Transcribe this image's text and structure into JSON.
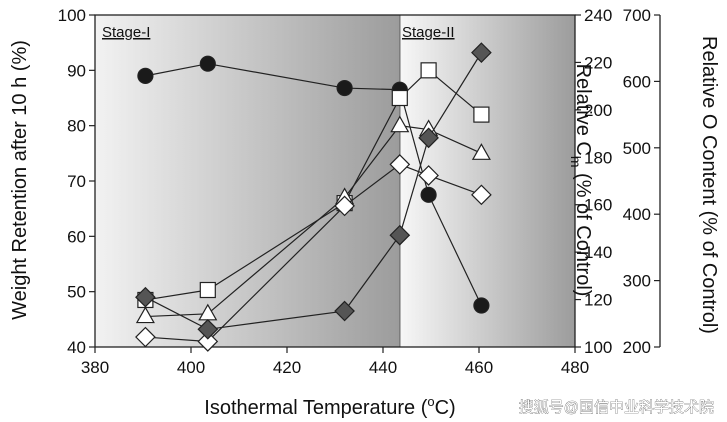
{
  "chart_data": {
    "type": "scatter",
    "x_axis": {
      "label_main": "Isothermal Temperature (",
      "label_sup": "o",
      "label_end": "C)",
      "range": [
        380,
        480
      ],
      "ticks": [
        380,
        400,
        420,
        440,
        460,
        480
      ]
    },
    "y_left": {
      "label": "Weight Retention after 10 h (%)",
      "range": [
        40,
        100
      ],
      "ticks": [
        40,
        50,
        60,
        70,
        80,
        90,
        100
      ]
    },
    "y_right_cm": {
      "label_main": "Relative C",
      "label_sub": "m",
      "label_end": " (% of Control)",
      "range": [
        100,
        240
      ],
      "ticks": [
        100,
        120,
        140,
        160,
        180,
        200,
        220,
        240
      ]
    },
    "y_right_o": {
      "label": "Relative O Content (% of Control)",
      "range": [
        200,
        700
      ],
      "ticks": [
        200,
        300,
        400,
        500,
        600,
        700
      ]
    },
    "stages": [
      {
        "label": "Stage-I",
        "x_range": [
          380,
          443.5
        ],
        "gradient": [
          "#f2f2f2",
          "#9c9c9c"
        ]
      },
      {
        "label": "Stage-II",
        "x_range": [
          443.5,
          480
        ],
        "gradient": [
          "#f7f7f7",
          "#9c9c9c"
        ]
      }
    ],
    "series": [
      {
        "marker": "circle",
        "fill": "#1a1a1a",
        "axis": "y_left",
        "x": [
          390.5,
          403.5,
          432,
          443.5,
          449.5,
          460.5
        ],
        "y": [
          89,
          91.2,
          86.8,
          86.5,
          67.5,
          47.5
        ]
      },
      {
        "marker": "square",
        "fill": "#ffffff",
        "axis": "y_left",
        "x": [
          390.5,
          403.5,
          432,
          443.5,
          449.5,
          460.5
        ],
        "y": [
          48.5,
          50.3,
          66,
          85,
          90,
          82
        ]
      },
      {
        "marker": "triangle",
        "fill": "#ffffff",
        "axis": "y_left",
        "x": [
          390.5,
          403.5,
          432,
          443.5,
          449.5,
          460.5
        ],
        "y": [
          45.5,
          46,
          67,
          80,
          79.3,
          75
        ]
      },
      {
        "marker": "diamond",
        "fill": "#ffffff",
        "axis": "y_left",
        "x": [
          390.5,
          403.5,
          432,
          443.5,
          449.5,
          460.5
        ],
        "y": [
          41.8,
          41,
          65.5,
          73,
          71,
          67.5
        ]
      },
      {
        "marker": "diamond",
        "fill": "#555555",
        "axis": "y_left",
        "x": [
          390.5,
          403.5,
          432,
          443.5,
          449.5,
          460.5
        ],
        "y": [
          49,
          43.2,
          46.5,
          60.2,
          77.8,
          93.2
        ]
      }
    ],
    "watermark": "搜狐号@国信中业科学技术院"
  }
}
